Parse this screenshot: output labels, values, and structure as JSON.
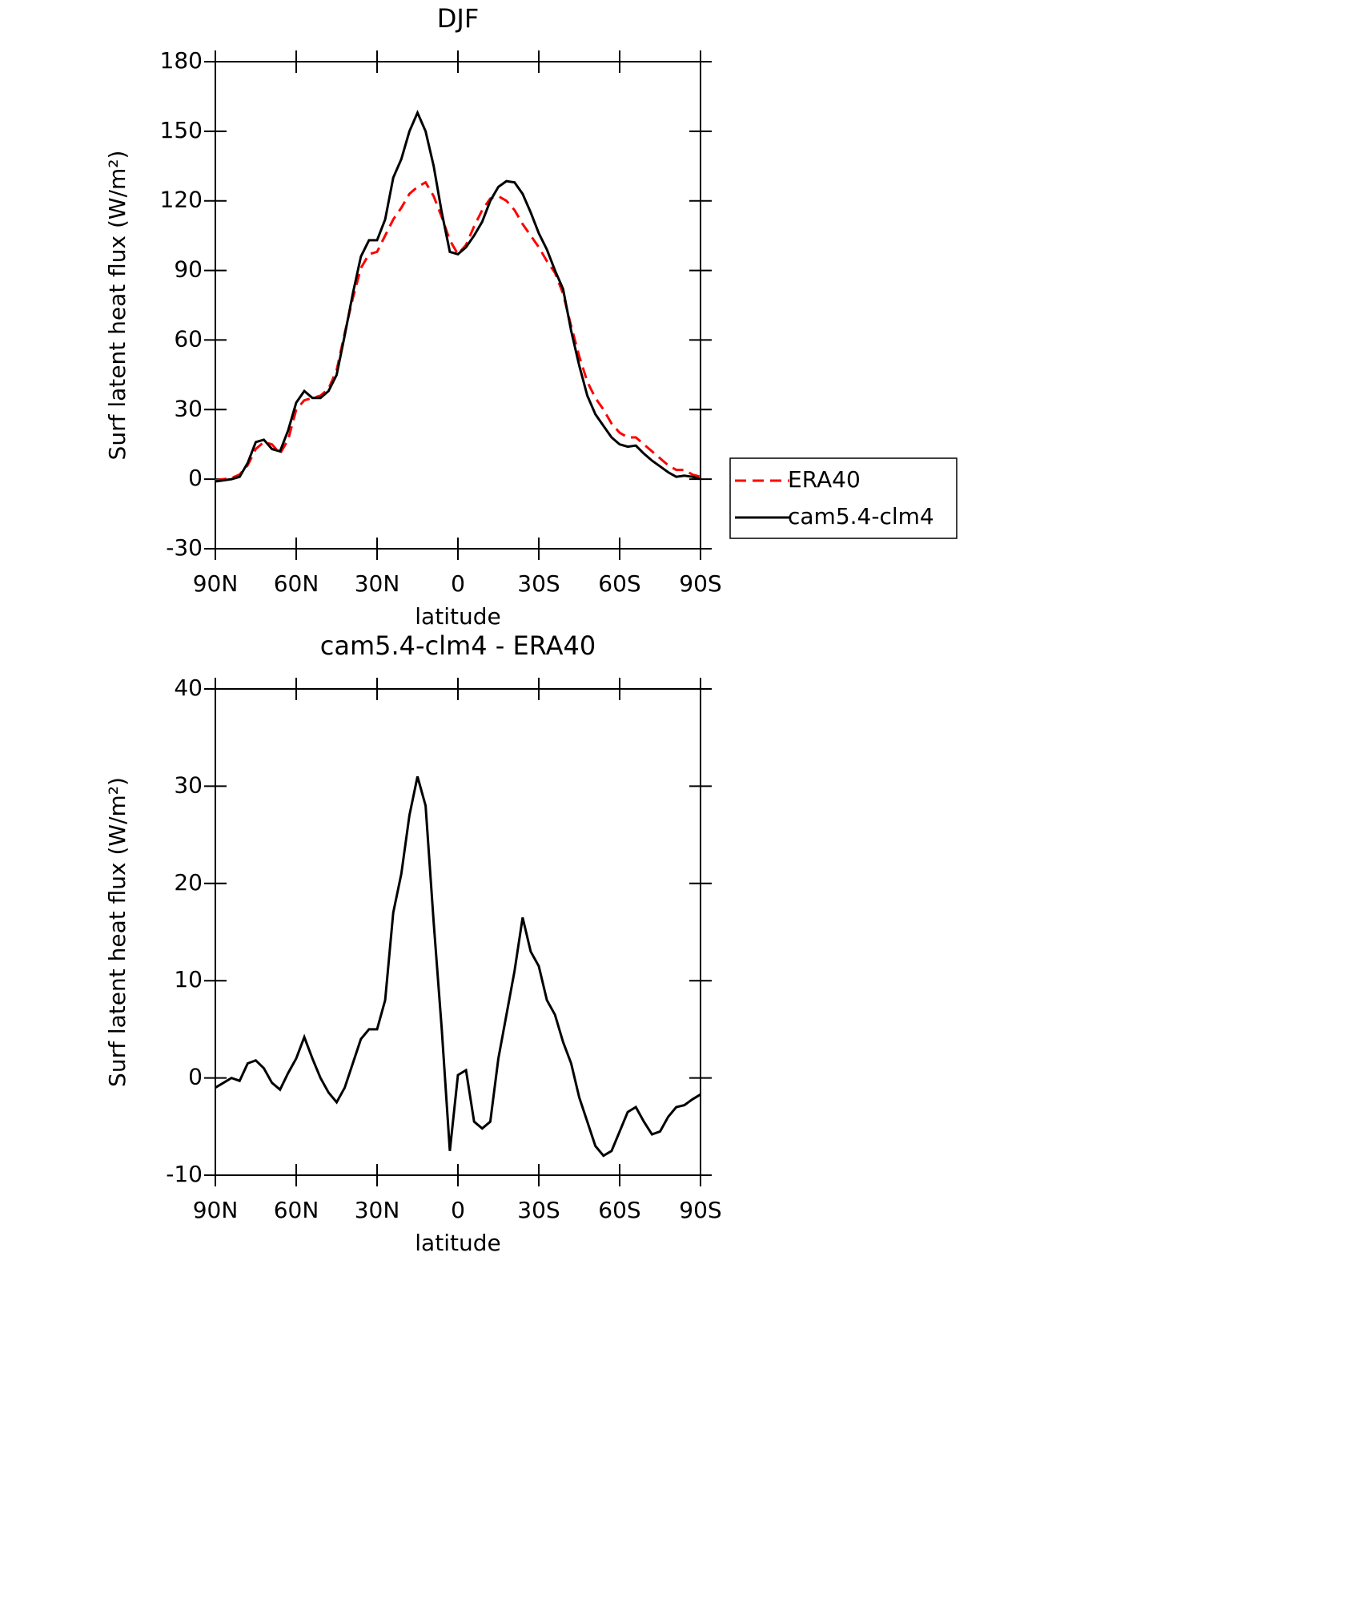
{
  "chart_data": [
    {
      "type": "line",
      "title": "DJF",
      "xlabel": "latitude",
      "ylabel": "Surf latent heat flux (W/m²)",
      "x": [
        90,
        87,
        84,
        81,
        78,
        75,
        72,
        69,
        66,
        63,
        60,
        57,
        54,
        51,
        48,
        45,
        42,
        39,
        36,
        33,
        30,
        27,
        24,
        21,
        18,
        15,
        12,
        9,
        6,
        3,
        0,
        -3,
        -6,
        -9,
        -12,
        -15,
        -18,
        -21,
        -24,
        -27,
        -30,
        -33,
        -36,
        -39,
        -42,
        -45,
        -48,
        -51,
        -54,
        -57,
        -60,
        -63,
        -66,
        -69,
        -72,
        -75,
        -78,
        -81,
        -84,
        -87,
        -90
      ],
      "xlim": [
        90,
        -90
      ],
      "xticks": [
        {
          "value": 90,
          "label": "90N"
        },
        {
          "value": 60,
          "label": "60N"
        },
        {
          "value": 30,
          "label": "30N"
        },
        0,
        {
          "value": -30,
          "label": "30S"
        },
        {
          "value": -60,
          "label": "60S"
        },
        {
          "value": -90,
          "label": "90S"
        }
      ],
      "ylim": [
        -30,
        180
      ],
      "yticks": [
        -30,
        0,
        30,
        60,
        90,
        120,
        150,
        180
      ],
      "legend": "right",
      "series": [
        {
          "name": "ERA40",
          "color": "#ff0000",
          "dashed": true,
          "values": [
            -0.5,
            0,
            0.5,
            2,
            6,
            13,
            16,
            15,
            11,
            17,
            30,
            34,
            35,
            36,
            39,
            47,
            63,
            78,
            91,
            97,
            98,
            105,
            112,
            117,
            123,
            126,
            128,
            122,
            113,
            103,
            97,
            101,
            109,
            116,
            121,
            122,
            120,
            116,
            110,
            105,
            100,
            94,
            89,
            80,
            66,
            53,
            42,
            35,
            30,
            24,
            20,
            18,
            18,
            15,
            12,
            9,
            6,
            4,
            4,
            2,
            1
          ]
        },
        {
          "name": "cam5.4-clm4",
          "color": "#000000",
          "dashed": false,
          "values": [
            -1,
            -0.5,
            0,
            1,
            7,
            16,
            17,
            13,
            12,
            21,
            33,
            38,
            35,
            35,
            38,
            45,
            62,
            80,
            96,
            103,
            103,
            112,
            130,
            138,
            150,
            158,
            150,
            135,
            115,
            98,
            97,
            100,
            105,
            111,
            120,
            126,
            128.5,
            128,
            123,
            115,
            106,
            99,
            90,
            82,
            64,
            49,
            36,
            28,
            23,
            18,
            15,
            14,
            14.5,
            11,
            8,
            5.5,
            3,
            1,
            1.5,
            1,
            0
          ]
        }
      ]
    },
    {
      "type": "line",
      "title": "cam5.4-clm4 - ERA40",
      "xlabel": "latitude",
      "ylabel": "Surf latent heat flux (W/m²)",
      "x": [
        90,
        87,
        84,
        81,
        78,
        75,
        72,
        69,
        66,
        63,
        60,
        57,
        54,
        51,
        48,
        45,
        42,
        39,
        36,
        33,
        30,
        27,
        24,
        21,
        18,
        15,
        12,
        9,
        6,
        3,
        0,
        -3,
        -6,
        -9,
        -12,
        -15,
        -18,
        -21,
        -24,
        -27,
        -30,
        -33,
        -36,
        -39,
        -42,
        -45,
        -48,
        -51,
        -54,
        -57,
        -60,
        -63,
        -66,
        -69,
        -72,
        -75,
        -78,
        -81,
        -84,
        -87,
        -90
      ],
      "xlim": [
        90,
        -90
      ],
      "xticks": [
        {
          "value": 90,
          "label": "90N"
        },
        {
          "value": 60,
          "label": "60N"
        },
        {
          "value": 30,
          "label": "30N"
        },
        0,
        {
          "value": -30,
          "label": "30S"
        },
        {
          "value": -60,
          "label": "60S"
        },
        {
          "value": -90,
          "label": "90S"
        }
      ],
      "ylim": [
        -10,
        40
      ],
      "yticks": [
        -10,
        0,
        10,
        20,
        30,
        40
      ],
      "series": [
        {
          "color": "#000000",
          "dashed": false,
          "values": [
            -1,
            -0.5,
            0,
            -0.3,
            1.5,
            1.8,
            1,
            -0.5,
            -1.2,
            0.5,
            2,
            4.2,
            2,
            0,
            -1.5,
            -2.5,
            -1,
            1.5,
            4,
            5,
            5,
            8,
            17,
            21,
            27,
            31,
            28,
            16,
            5,
            -7.5,
            0.3,
            0.8,
            -4.5,
            -5.2,
            -4.5,
            2,
            6.5,
            11,
            16.5,
            13,
            11.5,
            8,
            6.5,
            3.7,
            1.5,
            -2,
            -4.5,
            -7,
            -8,
            -7.5,
            -5.5,
            -3.5,
            -3,
            -4.5,
            -5.8,
            -5.5,
            -4,
            -3,
            -2.8,
            -2.2,
            -1.7
          ]
        }
      ]
    }
  ]
}
